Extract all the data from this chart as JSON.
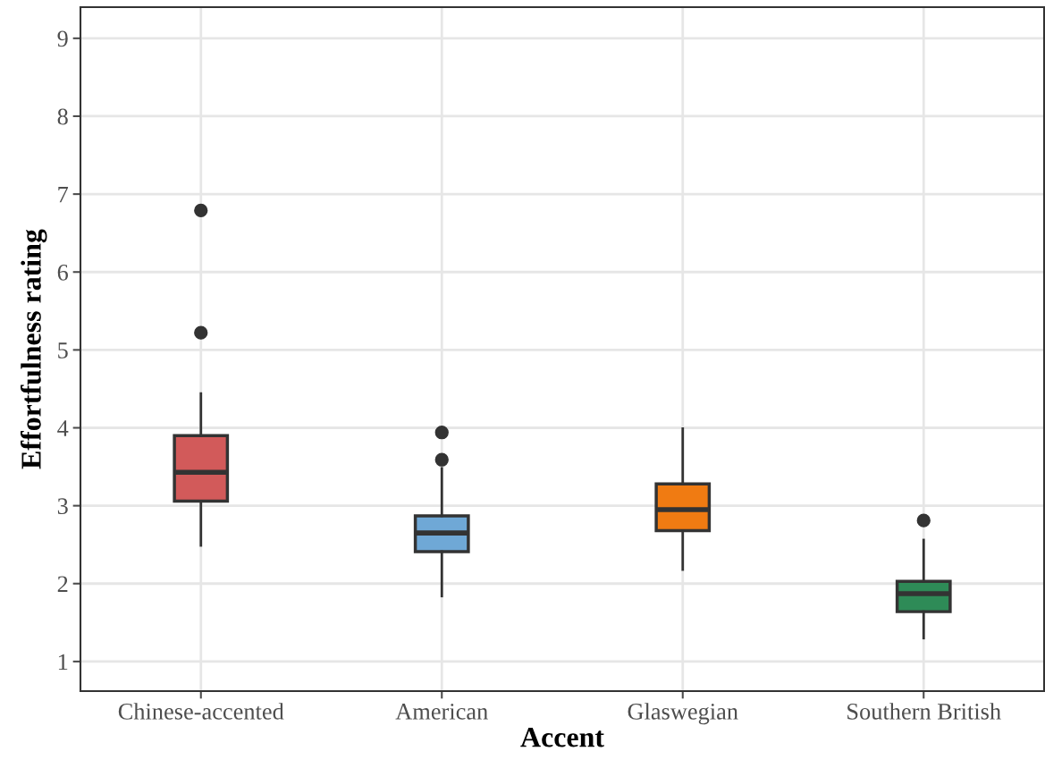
{
  "chart_data": {
    "type": "box",
    "xlabel": "Accent",
    "ylabel": "Effortfulness rating",
    "categories": [
      "Chinese-accented",
      "American",
      "Glaswegian",
      "Southern British"
    ],
    "colors": [
      "#d25a5a",
      "#6fa8d6",
      "#f07b12",
      "#2e8b57"
    ],
    "boxes": [
      {
        "low": 2.49,
        "q1": 3.06,
        "median": 3.43,
        "q3": 3.9,
        "high": 4.44,
        "outliers": [
          5.22,
          6.79
        ]
      },
      {
        "low": 1.84,
        "q1": 2.41,
        "median": 2.65,
        "q3": 2.87,
        "high": 3.48,
        "outliers": [
          3.59,
          3.94
        ]
      },
      {
        "low": 2.18,
        "q1": 2.68,
        "median": 2.95,
        "q3": 3.28,
        "high": 3.99
      },
      {
        "low": 1.3,
        "q1": 1.64,
        "median": 1.87,
        "q3": 2.03,
        "high": 2.56,
        "outliers": [
          2.81
        ]
      }
    ],
    "ylim": [
      0.62,
      9.4
    ],
    "yticks": [
      1,
      2,
      3,
      4,
      5,
      6,
      7,
      8,
      9
    ],
    "grid": true
  }
}
